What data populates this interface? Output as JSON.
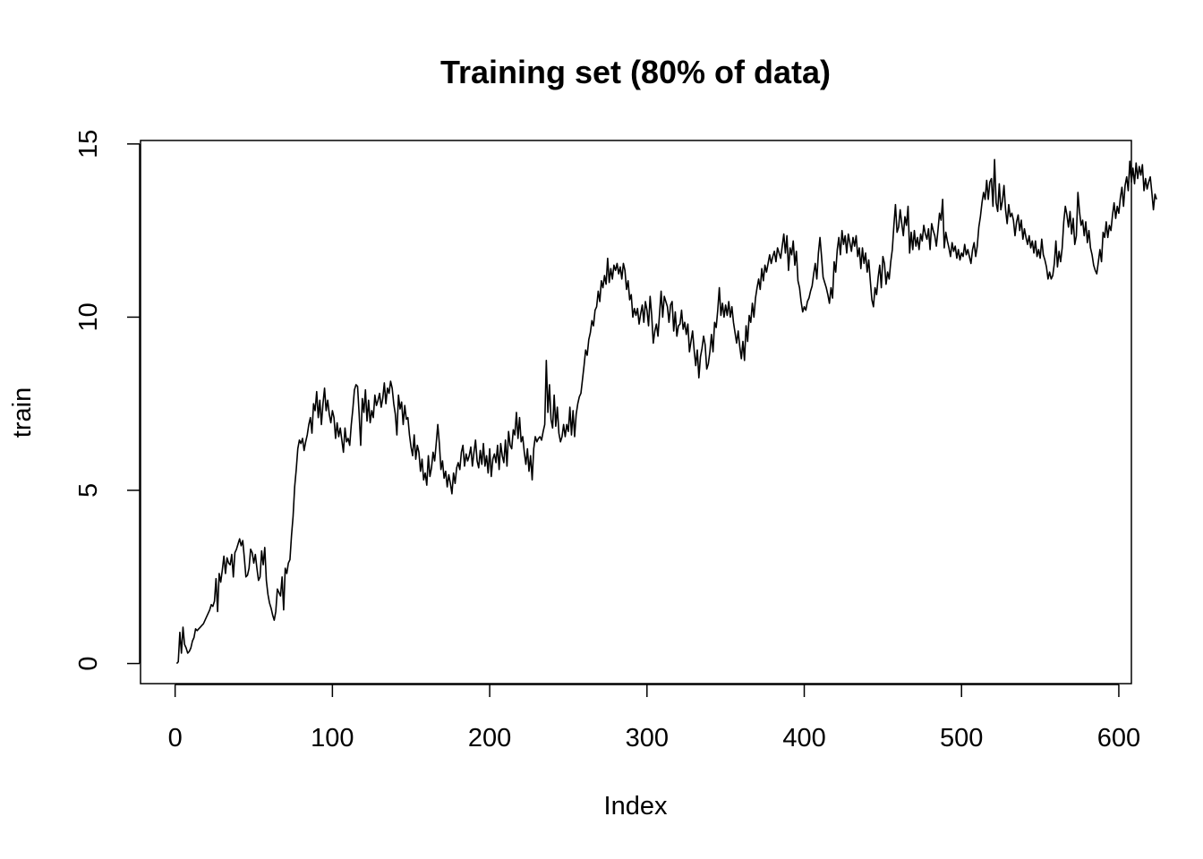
{
  "chart_data": {
    "type": "line",
    "title": "Training set (80% of data)",
    "xlabel": "Index",
    "ylabel": "train",
    "xlim": [
      -22,
      608
    ],
    "ylim": [
      -0.58,
      15.1
    ],
    "x_ticks": [
      0,
      100,
      200,
      300,
      400,
      500,
      600
    ],
    "y_ticks": [
      0,
      5,
      10,
      15
    ],
    "grid": false,
    "line_color": "#000000",
    "series": [
      {
        "x_start": 1,
        "x_step": 1,
        "values": [
          0.0,
          0.05,
          0.9,
          0.3,
          1.05,
          0.55,
          0.45,
          0.3,
          0.35,
          0.45,
          0.65,
          0.75,
          1.0,
          0.95,
          1.0,
          1.05,
          1.1,
          1.15,
          1.25,
          1.35,
          1.45,
          1.55,
          1.7,
          1.65,
          1.8,
          2.45,
          1.5,
          2.6,
          2.35,
          2.7,
          3.1,
          2.6,
          3.05,
          2.9,
          2.85,
          3.15,
          2.5,
          3.2,
          3.3,
          3.45,
          3.6,
          3.4,
          3.55,
          3.05,
          2.5,
          2.55,
          2.75,
          3.3,
          3.2,
          2.9,
          3.15,
          2.75,
          2.4,
          2.5,
          3.25,
          2.85,
          3.35,
          2.4,
          2.0,
          1.75,
          1.6,
          1.4,
          1.25,
          1.5,
          2.15,
          2.05,
          1.95,
          2.5,
          1.55,
          2.75,
          2.6,
          2.9,
          3.0,
          3.7,
          4.25,
          5.1,
          5.6,
          6.2,
          6.45,
          6.35,
          6.5,
          6.15,
          6.4,
          6.6,
          6.9,
          7.1,
          6.65,
          7.5,
          7.3,
          7.85,
          7.1,
          7.6,
          6.9,
          7.5,
          7.95,
          7.3,
          7.6,
          7.2,
          6.95,
          7.3,
          7.1,
          6.5,
          6.95,
          6.55,
          6.8,
          6.45,
          6.1,
          6.8,
          6.4,
          6.5,
          6.3,
          6.9,
          7.35,
          7.9,
          8.05,
          8.0,
          7.2,
          6.3,
          7.65,
          7.25,
          7.9,
          7.0,
          7.6,
          6.95,
          7.3,
          7.1,
          7.75,
          7.45,
          7.6,
          7.8,
          7.4,
          7.65,
          8.1,
          7.5,
          7.95,
          7.8,
          8.15,
          7.95,
          7.5,
          7.2,
          6.6,
          7.75,
          7.35,
          7.55,
          6.9,
          7.45,
          7.05,
          7.1,
          6.6,
          6.25,
          6.0,
          6.6,
          5.9,
          6.3,
          6.1,
          5.55,
          5.9,
          5.3,
          5.5,
          5.15,
          6.0,
          5.4,
          5.65,
          6.1,
          5.85,
          6.35,
          6.9,
          6.35,
          5.6,
          5.85,
          5.35,
          5.55,
          5.1,
          5.45,
          5.2,
          4.9,
          5.5,
          5.2,
          5.65,
          5.8,
          5.6,
          6.1,
          6.3,
          5.7,
          6.05,
          5.85,
          6.0,
          6.25,
          5.7,
          6.1,
          6.45,
          5.85,
          5.65,
          6.15,
          5.75,
          6.35,
          5.7,
          6.0,
          5.5,
          6.2,
          5.4,
          5.9,
          6.05,
          5.8,
          6.3,
          5.6,
          6.35,
          6.0,
          5.8,
          6.45,
          5.7,
          6.7,
          6.3,
          6.2,
          6.75,
          6.6,
          7.25,
          6.5,
          7.1,
          6.4,
          6.55,
          6.1,
          5.75,
          6.2,
          5.55,
          6.0,
          5.3,
          6.2,
          6.55,
          6.4,
          6.5,
          6.55,
          6.45,
          6.7,
          6.9,
          8.75,
          7.25,
          8.05,
          7.05,
          6.8,
          7.75,
          6.85,
          7.4,
          6.65,
          6.4,
          6.55,
          6.9,
          6.55,
          6.9,
          6.7,
          7.4,
          6.6,
          7.3,
          6.55,
          7.2,
          7.5,
          7.7,
          7.8,
          8.2,
          8.6,
          9.05,
          8.9,
          9.35,
          9.55,
          9.9,
          9.75,
          10.2,
          10.3,
          10.75,
          10.45,
          11.05,
          10.85,
          11.2,
          10.95,
          11.7,
          11.0,
          11.4,
          11.1,
          11.5,
          11.35,
          11.55,
          11.25,
          11.45,
          11.1,
          11.55,
          11.35,
          10.8,
          11.05,
          10.5,
          10.65,
          10.0,
          10.25,
          10.05,
          10.25,
          9.8,
          10.1,
          10.35,
          9.85,
          10.45,
          10.2,
          9.75,
          10.6,
          10.05,
          9.25,
          9.6,
          9.8,
          9.45,
          10.1,
          10.75,
          10.0,
          10.6,
          10.45,
          10.3,
          9.85,
          10.35,
          10.45,
          9.6,
          10.15,
          9.45,
          9.75,
          9.8,
          10.2,
          9.65,
          9.85,
          9.5,
          9.8,
          9.0,
          9.3,
          9.6,
          9.05,
          8.6,
          9.05,
          8.25,
          8.85,
          9.1,
          9.45,
          9.2,
          8.5,
          8.65,
          9.0,
          9.5,
          9.0,
          9.85,
          9.7,
          10.2,
          10.85,
          10.05,
          10.4,
          10.0,
          10.35,
          10.05,
          10.45,
          10.0,
          10.3,
          9.85,
          9.55,
          9.25,
          9.6,
          9.15,
          8.8,
          9.3,
          8.75,
          9.75,
          9.3,
          10.05,
          9.85,
          10.4,
          10.0,
          10.55,
          10.85,
          11.1,
          10.8,
          11.4,
          11.05,
          11.5,
          11.3,
          11.55,
          11.8,
          11.55,
          11.75,
          11.9,
          11.6,
          12.0,
          11.85,
          11.7,
          12.05,
          12.4,
          11.85,
          12.35,
          11.35,
          12.0,
          11.8,
          12.2,
          11.5,
          11.9,
          11.05,
          10.85,
          10.45,
          10.15,
          10.3,
          10.2,
          10.45,
          10.55,
          10.75,
          10.9,
          11.25,
          11.55,
          11.1,
          11.85,
          12.3,
          11.75,
          11.15,
          11.0,
          10.85,
          10.65,
          10.4,
          10.85,
          10.55,
          11.6,
          11.3,
          11.95,
          12.3,
          11.8,
          12.5,
          12.1,
          12.35,
          11.85,
          12.4,
          12.15,
          11.9,
          12.3,
          12.05,
          12.35,
          11.75,
          12.0,
          11.4,
          12.0,
          11.55,
          11.85,
          11.3,
          11.65,
          11.05,
          10.5,
          10.3,
          10.85,
          10.65,
          11.15,
          11.5,
          10.85,
          11.75,
          11.55,
          10.95,
          11.3,
          11.1,
          11.6,
          11.95,
          12.65,
          13.25,
          12.45,
          12.6,
          13.1,
          12.7,
          12.35,
          12.9,
          12.65,
          13.2,
          11.85,
          12.45,
          11.95,
          12.5,
          12.05,
          12.3,
          11.95,
          12.4,
          12.2,
          12.65,
          12.4,
          12.25,
          12.55,
          11.95,
          12.7,
          12.5,
          12.35,
          12.05,
          12.5,
          13.0,
          12.8,
          13.4,
          12.0,
          12.45,
          12.2,
          12.0,
          11.75,
          12.15,
          11.9,
          12.05,
          11.7,
          11.95,
          11.65,
          11.85,
          11.75,
          12.1,
          11.8,
          11.95,
          11.75,
          11.55,
          11.95,
          12.15,
          11.75,
          12.05,
          12.6,
          12.9,
          13.3,
          13.6,
          13.4,
          13.95,
          13.4,
          13.9,
          14.0,
          13.2,
          14.55,
          13.3,
          13.05,
          13.85,
          13.1,
          13.35,
          13.8,
          13.1,
          12.7,
          13.25,
          12.9,
          13.0,
          12.8,
          12.35,
          12.75,
          12.95,
          12.5,
          12.8,
          12.25,
          12.55,
          12.3,
          12.1,
          12.35,
          12.0,
          12.2,
          11.85,
          12.2,
          11.75,
          11.95,
          11.7,
          12.25,
          11.8,
          11.65,
          11.45,
          11.1,
          11.3,
          11.1,
          11.2,
          11.55,
          12.2,
          11.45,
          11.9,
          11.6,
          12.0,
          12.75,
          13.2,
          12.95,
          12.6,
          13.05,
          12.4,
          12.85,
          12.1,
          12.35,
          13.6,
          13.05,
          12.65,
          12.8,
          12.35,
          12.75,
          12.15,
          12.5,
          12.0,
          11.8,
          11.5,
          11.35,
          11.25,
          11.6,
          11.95,
          11.6,
          12.45,
          12.3,
          12.75,
          12.3,
          12.65,
          12.5,
          12.95,
          13.3,
          12.85,
          13.2,
          13.0,
          13.45,
          13.75,
          13.2,
          13.8,
          14.05,
          13.65,
          14.5,
          13.9,
          14.3,
          13.85,
          14.45,
          14.0,
          14.35,
          14.1,
          14.4,
          13.65,
          14.0,
          13.7,
          13.9,
          14.05,
          13.6,
          13.1,
          13.55,
          13.4
        ]
      }
    ]
  }
}
